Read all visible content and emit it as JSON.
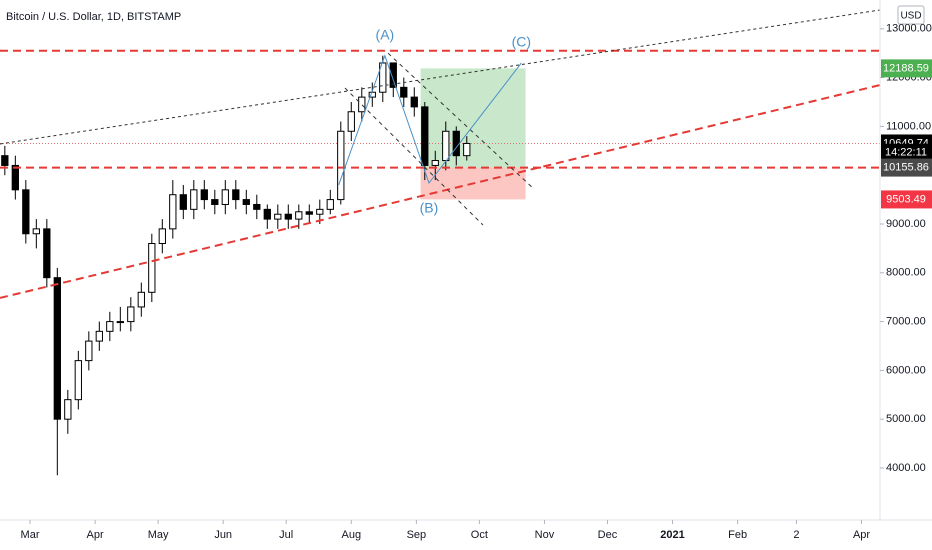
{
  "chart_data": {
    "type": "candlestick",
    "title": "Bitcoin / U.S. Dollar, 1D, BITSTAMP",
    "currency": "USD",
    "x": [
      -12,
      -7,
      -2,
      3,
      8,
      13,
      18,
      23,
      28,
      33,
      38,
      43,
      48,
      53,
      58,
      63,
      68,
      73,
      78,
      83,
      88,
      93,
      98,
      103,
      108,
      113,
      118,
      123,
      128,
      133,
      138,
      143,
      148,
      153,
      158,
      163,
      168,
      173,
      178,
      183,
      188,
      193,
      198,
      203,
      208
    ],
    "open": [
      10400,
      10200,
      9700,
      8800,
      8900,
      7900,
      5000,
      5400,
      6200,
      6600,
      6800,
      7000,
      7000,
      7300,
      7600,
      8600,
      8900,
      9600,
      9300,
      9700,
      9500,
      9400,
      9700,
      9500,
      9400,
      9300,
      9100,
      9200,
      9100,
      9250,
      9200,
      9300,
      9500,
      10900,
      11300,
      11600,
      11700,
      12300,
      11800,
      11600,
      11400,
      10200,
      10300,
      10900,
      10400
    ],
    "high": [
      10600,
      10400,
      9900,
      9100,
      9100,
      8100,
      5600,
      6400,
      6800,
      7000,
      7200,
      7300,
      7500,
      7800,
      8800,
      9100,
      9900,
      9800,
      9900,
      9900,
      9700,
      9900,
      9900,
      9700,
      9600,
      9400,
      9400,
      9400,
      9400,
      9400,
      9500,
      9700,
      11100,
      11500,
      11800,
      11900,
      12450,
      12300,
      12000,
      11800,
      11500,
      10500,
      11100,
      11000,
      10800
    ],
    "low": [
      10000,
      9500,
      8600,
      8500,
      7700,
      3850,
      4700,
      5200,
      6000,
      6400,
      6600,
      6800,
      6800,
      7100,
      7400,
      8400,
      8700,
      9100,
      9100,
      9300,
      9200,
      9200,
      9300,
      9200,
      9100,
      8900,
      8900,
      8900,
      8900,
      9000,
      9000,
      9200,
      9400,
      10700,
      11100,
      11400,
      11500,
      11600,
      11400,
      11200,
      9900,
      9900,
      10100,
      10200,
      10300
    ],
    "close": [
      10200,
      9700,
      8800,
      8900,
      7900,
      5000,
      5400,
      6200,
      6600,
      6800,
      7000,
      7000,
      7300,
      7600,
      8600,
      8900,
      9600,
      9300,
      9700,
      9500,
      9400,
      9700,
      9500,
      9400,
      9300,
      9100,
      9200,
      9100,
      9250,
      9200,
      9300,
      9500,
      10900,
      11300,
      11600,
      11700,
      12300,
      11800,
      11600,
      11400,
      10200,
      10300,
      10900,
      10400,
      10650
    ],
    "up_color": "#ffffff",
    "down_color": "#000000",
    "xlim": [
      -14.3,
      404.8
    ],
    "ylim": [
      2934,
      13590
    ],
    "xticks": [
      {
        "value": 0,
        "label": "Mar"
      },
      {
        "value": 31,
        "label": "Apr"
      },
      {
        "value": 61,
        "label": "May"
      },
      {
        "value": 92,
        "label": "Jun"
      },
      {
        "value": 122,
        "label": "Jul"
      },
      {
        "value": 153,
        "label": "Aug"
      },
      {
        "value": 184,
        "label": "Sep"
      },
      {
        "value": 214,
        "label": "Oct"
      },
      {
        "value": 245,
        "label": "Nov"
      },
      {
        "value": 275,
        "label": "Dec"
      },
      {
        "value": 306,
        "label": "2021"
      },
      {
        "value": 337,
        "label": "Feb"
      },
      {
        "value": 365,
        "label": "2"
      },
      {
        "value": 396,
        "label": "Apr"
      }
    ],
    "yticks": [
      {
        "value": 4000,
        "label": "4000.00"
      },
      {
        "value": 5000,
        "label": "5000.00"
      },
      {
        "value": 6000,
        "label": "6000.00"
      },
      {
        "value": 7000,
        "label": "7000.00"
      },
      {
        "value": 8000,
        "label": "8000.00"
      },
      {
        "value": 9000,
        "label": "9000.00"
      },
      {
        "value": 11000,
        "label": "11000.00"
      },
      {
        "value": 12000,
        "label": "12000.00"
      },
      {
        "value": 13000,
        "label": "13000.00"
      }
    ],
    "levels": [
      12550,
      10155.86
    ],
    "level_color": "#e53935",
    "last_price_line": 10649.74,
    "position": {
      "x_start": 186,
      "x_end": 236,
      "entry": 10155.86,
      "target": 12188.59,
      "stop": 9503.49,
      "target_color": "#4caf50",
      "stop_color": "#f44336"
    },
    "trendlines": [
      {
        "color": "#e53935",
        "dash": "8,5",
        "width": 2,
        "points": [
          [
            -14.3,
            7484
          ],
          [
            404.8,
            11848
          ]
        ]
      },
      {
        "color": "#333333",
        "dash": "3,3",
        "width": 1,
        "points": [
          [
            -14.3,
            10640
          ],
          [
            404.8,
            13385
          ]
        ]
      },
      {
        "color": "#333333",
        "dash": "4,4",
        "width": 1,
        "points": [
          [
            170.5,
            12500
          ],
          [
            239.5,
            9737
          ]
        ]
      },
      {
        "color": "#333333",
        "dash": "4,4",
        "width": 1,
        "points": [
          [
            150,
            11787
          ],
          [
            215.7,
            8980
          ]
        ]
      }
    ],
    "wave_color": "#4a90c8",
    "waves": [
      {
        "label": null,
        "x": 147,
        "price": 9800
      },
      {
        "label": "(A)",
        "x": 169,
        "price": 12450
      },
      {
        "label": "(B)",
        "x": 190,
        "price": 9840
      },
      {
        "label": "(C)",
        "x": 234,
        "price": 12300
      }
    ],
    "price_labels": [
      {
        "value": 12188.59,
        "label": "12188.59",
        "color": "#4caf50"
      },
      {
        "value": 10649.74,
        "label": "10649.74",
        "color": "#000000"
      },
      {
        "value": 10460,
        "label": "14:22:11",
        "color": "#000000"
      },
      {
        "value": 10155.86,
        "label": "10155.86",
        "color": "#4a4a4a"
      },
      {
        "value": 9503.49,
        "label": "9503.49",
        "color": "#f23645"
      }
    ]
  }
}
